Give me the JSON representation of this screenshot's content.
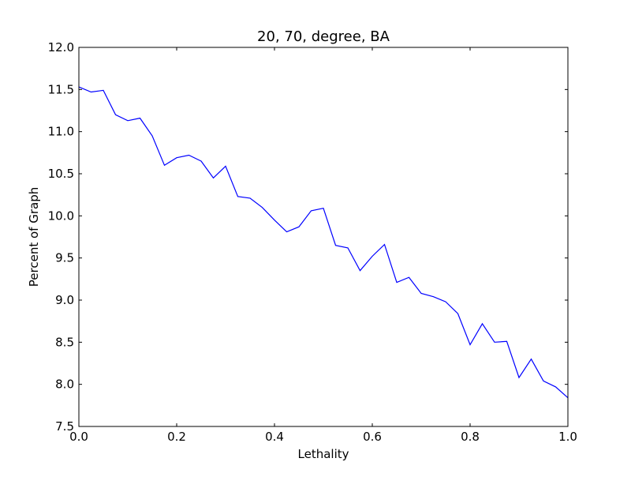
{
  "chart_data": {
    "type": "line",
    "title": "20, 70, degree, BA",
    "xlabel": "Lethality",
    "ylabel": "Percent of Graph",
    "xlim": [
      0.0,
      1.0
    ],
    "ylim": [
      7.5,
      12.0
    ],
    "grid": false,
    "x_ticks": [
      0.0,
      0.2,
      0.4,
      0.6,
      0.8,
      1.0
    ],
    "x_tick_labels": [
      "0.0",
      "0.2",
      "0.4",
      "0.6",
      "0.8",
      "1.0"
    ],
    "y_ticks": [
      7.5,
      8.0,
      8.5,
      9.0,
      9.5,
      10.0,
      10.5,
      11.0,
      11.5,
      12.0
    ],
    "y_tick_labels": [
      "7.5",
      "8.0",
      "8.5",
      "9.0",
      "9.5",
      "10.0",
      "10.5",
      "11.0",
      "11.5",
      "12.0"
    ],
    "series": [
      {
        "color": "#0000ff",
        "x": [
          0.0,
          0.025,
          0.05,
          0.075,
          0.1,
          0.125,
          0.15,
          0.175,
          0.2,
          0.225,
          0.25,
          0.275,
          0.3,
          0.325,
          0.35,
          0.375,
          0.4,
          0.425,
          0.45,
          0.475,
          0.5,
          0.525,
          0.55,
          0.575,
          0.6,
          0.625,
          0.65,
          0.675,
          0.7,
          0.725,
          0.75,
          0.775,
          0.8,
          0.825,
          0.85,
          0.875,
          0.9,
          0.925,
          0.95,
          0.975,
          1.0
        ],
        "y": [
          11.53,
          11.47,
          11.49,
          11.2,
          11.13,
          11.16,
          10.95,
          10.6,
          10.69,
          10.72,
          10.65,
          10.45,
          10.59,
          10.23,
          10.21,
          10.1,
          9.95,
          9.81,
          9.87,
          10.06,
          10.09,
          9.65,
          9.62,
          9.35,
          9.52,
          9.66,
          9.21,
          9.27,
          9.08,
          9.04,
          8.98,
          8.84,
          8.47,
          8.72,
          8.5,
          8.51,
          8.08,
          8.3,
          8.04,
          7.97,
          7.84
        ]
      }
    ]
  }
}
